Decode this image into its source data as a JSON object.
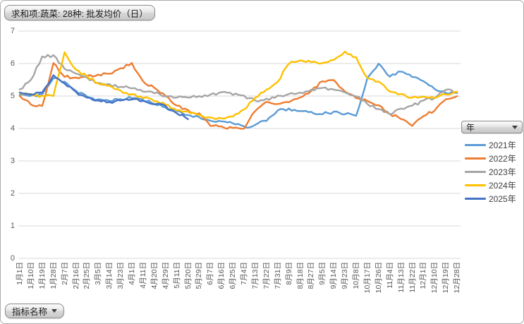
{
  "field_buttons": {
    "value_button": "求和项:蔬菜: 28种: 批发均价（日）",
    "legend_button": "年",
    "axis_button": "指标名称"
  },
  "legend": {
    "entries": [
      {
        "label": "2021年",
        "color": "#5B9BD5"
      },
      {
        "label": "2022年",
        "color": "#ED7D31"
      },
      {
        "label": "2023年",
        "color": "#A5A5A5"
      },
      {
        "label": "2024年",
        "color": "#FFC000"
      },
      {
        "label": "2025年",
        "color": "#4472C4"
      }
    ]
  },
  "chart_data": {
    "type": "line",
    "title": "求和项:蔬菜: 28种: 批发均价（日）",
    "xlabel": "",
    "ylabel": "",
    "ylim": [
      0,
      7
    ],
    "yticks": [
      "0",
      "1",
      "2",
      "3",
      "4",
      "5",
      "6",
      "7"
    ],
    "grid": "horizontal",
    "legend_position": "right",
    "gridline_color": "#D9D9D9",
    "axis_text_color": "#595959",
    "categories": [
      "1月1日",
      "1月10日",
      "1月19日",
      "1月28日",
      "2月7日",
      "2月16日",
      "2月25日",
      "3月5日",
      "3月14日",
      "3月23日",
      "4月1日",
      "4月11日",
      "4月20日",
      "4月29日",
      "5月11日",
      "5月20日",
      "5月29日",
      "6月7日",
      "6月16日",
      "6月25日",
      "7月4日",
      "7月13日",
      "7月22日",
      "7月31日",
      "8月9日",
      "8月18日",
      "8月27日",
      "9月5日",
      "9月14日",
      "9月23日",
      "10月8日",
      "10月17日",
      "10月26日",
      "11月4日",
      "11月13日",
      "11月22日",
      "12月1日",
      "12月10日",
      "12月19日",
      "12月28日"
    ],
    "series": [
      {
        "name": "2021年",
        "color": "#5B9BD5",
        "values": [
          5.05,
          5.0,
          5.05,
          5.55,
          5.45,
          5.15,
          4.97,
          4.9,
          4.85,
          4.9,
          4.95,
          4.88,
          4.75,
          4.65,
          4.52,
          4.42,
          4.35,
          4.25,
          4.2,
          4.15,
          4.05,
          4.1,
          4.25,
          4.55,
          4.6,
          4.55,
          4.5,
          4.45,
          4.5,
          4.45,
          4.4,
          5.55,
          6.0,
          5.6,
          5.75,
          5.6,
          5.45,
          5.2,
          5.1,
          5.1
        ]
      },
      {
        "name": "2022年",
        "color": "#ED7D31",
        "values": [
          5.0,
          4.75,
          4.7,
          6.0,
          5.6,
          5.55,
          5.6,
          5.65,
          5.7,
          5.85,
          6.0,
          5.45,
          5.25,
          5.0,
          4.7,
          4.55,
          4.45,
          4.1,
          4.05,
          4.0,
          4.0,
          4.55,
          4.8,
          4.75,
          4.8,
          4.95,
          5.15,
          5.45,
          5.5,
          5.15,
          4.95,
          4.85,
          4.7,
          4.45,
          4.3,
          4.1,
          4.4,
          4.55,
          4.9,
          5.0
        ]
      },
      {
        "name": "2023年",
        "color": "#A5A5A5",
        "values": [
          5.2,
          5.5,
          6.2,
          6.25,
          5.85,
          5.7,
          5.55,
          5.4,
          5.35,
          5.3,
          5.25,
          5.15,
          5.1,
          5.0,
          4.95,
          4.95,
          5.0,
          5.05,
          5.1,
          5.05,
          5.0,
          4.85,
          4.9,
          5.0,
          5.05,
          5.1,
          5.2,
          5.25,
          5.2,
          5.1,
          5.0,
          4.75,
          4.6,
          4.45,
          4.6,
          4.7,
          4.85,
          4.95,
          5.2,
          5.1
        ]
      },
      {
        "name": "2024年",
        "color": "#FFC000",
        "values": [
          5.1,
          5.05,
          5.0,
          5.0,
          6.35,
          5.8,
          5.6,
          5.4,
          5.3,
          5.15,
          5.05,
          4.95,
          4.85,
          4.75,
          4.55,
          4.5,
          4.4,
          4.35,
          4.3,
          4.35,
          4.6,
          4.95,
          5.2,
          5.45,
          6.0,
          6.1,
          6.05,
          6.0,
          6.1,
          6.35,
          6.2,
          5.55,
          5.45,
          5.15,
          5.05,
          4.95,
          5.0,
          4.95,
          5.05,
          5.15
        ]
      },
      {
        "name": "2025年",
        "color": "#4472C4",
        "values": [
          5.1,
          5.05,
          5.1,
          5.65,
          5.4,
          5.12,
          4.93,
          4.86,
          4.82,
          4.85,
          4.9,
          4.84,
          4.76,
          4.68,
          4.48,
          4.3,
          null,
          null,
          null,
          null,
          null,
          null,
          null,
          null,
          null,
          null,
          null,
          null,
          null,
          null,
          null,
          null,
          null,
          null,
          null,
          null,
          null,
          null,
          null,
          null
        ]
      }
    ]
  }
}
